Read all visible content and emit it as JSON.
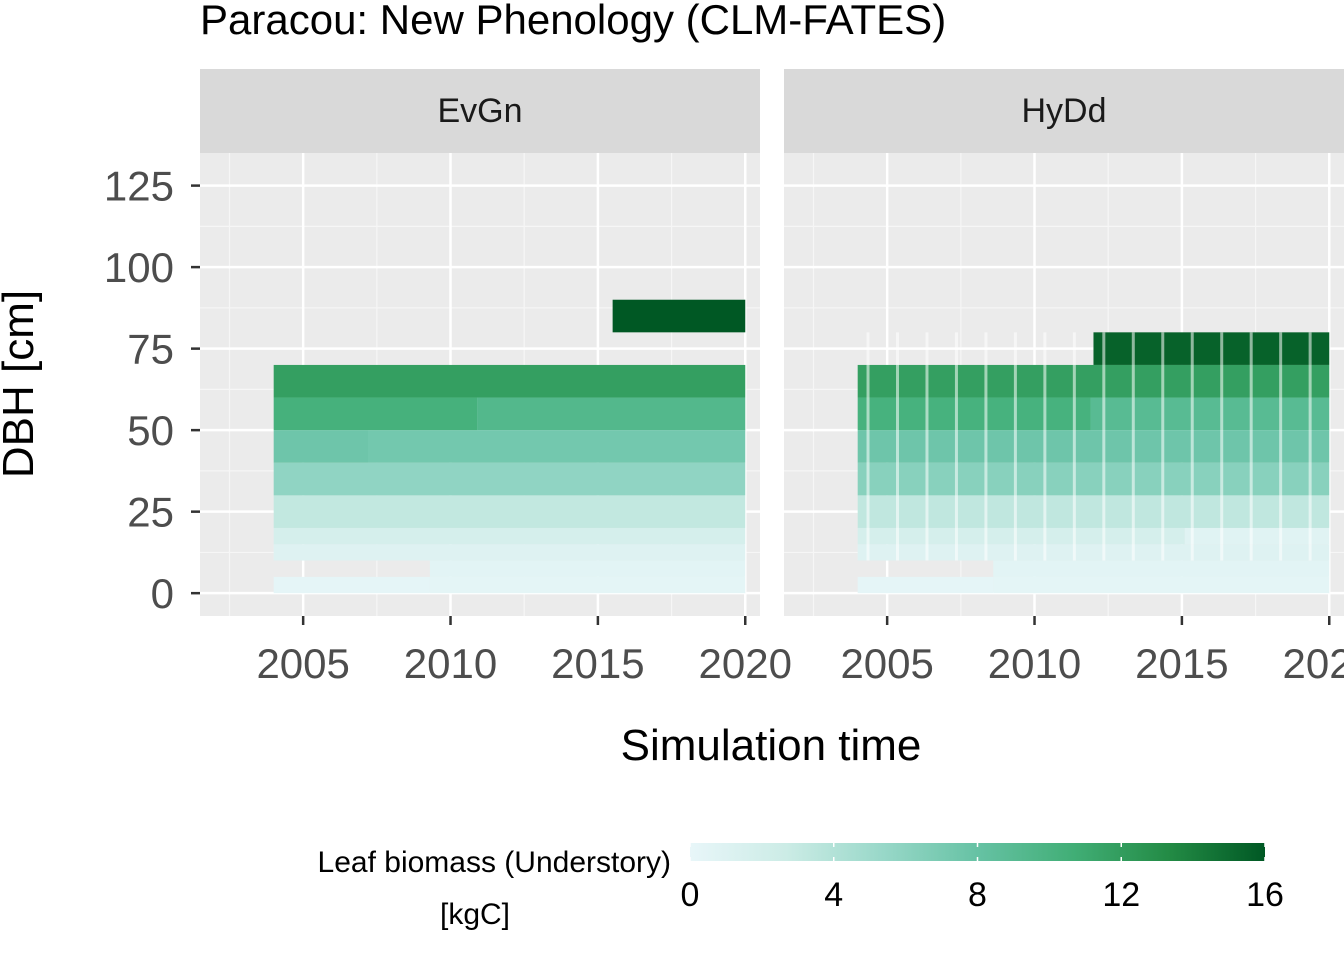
{
  "chart_data": {
    "type": "heatmap",
    "title": "Paracou: New Phenology (CLM-FATES)",
    "xlabel": "Simulation time",
    "ylabel": "DBH [cm]",
    "xlim": [
      2001.5,
      2020.5
    ],
    "ylim": [
      -7,
      135
    ],
    "x_ticks": [
      2005,
      2010,
      2015,
      2020
    ],
    "x_tick_labels": [
      "2005",
      "2010",
      "2015",
      "2020"
    ],
    "y_ticks": [
      0,
      25,
      50,
      75,
      100,
      125
    ],
    "y_tick_labels": [
      "0",
      "25",
      "50",
      "75",
      "100",
      "125"
    ],
    "grid": true,
    "colorbar": {
      "title_line1": "Leaf biomass (Understory)",
      "title_line2": "[kgC]",
      "range": [
        0,
        16
      ],
      "ticks": [
        0,
        4,
        8,
        12,
        16
      ],
      "tick_labels": [
        "0",
        "4",
        "8",
        "12",
        "16"
      ],
      "colors": [
        "#e8f6f9",
        "#ccece6",
        "#99d8c9",
        "#66c2a4",
        "#41ae76",
        "#238b45",
        "#005824"
      ],
      "position": "bottom"
    },
    "facets": [
      {
        "label": "EvGn",
        "cells": [
          {
            "x0": 2004,
            "x1": 2009.3,
            "y0": 0,
            "y1": 5,
            "value": 0.3
          },
          {
            "x0": 2009.3,
            "x1": 2020,
            "y0": 0,
            "y1": 5,
            "value": 0.4
          },
          {
            "x0": 2004,
            "x1": 2009.3,
            "y0": 5,
            "y1": 10,
            "value": null
          },
          {
            "x0": 2009.3,
            "x1": 2020,
            "y0": 5,
            "y1": 10,
            "value": 0.6
          },
          {
            "x0": 2004,
            "x1": 2020,
            "y0": 10,
            "y1": 15,
            "value": 1.0
          },
          {
            "x0": 2004,
            "x1": 2020,
            "y0": 15,
            "y1": 20,
            "value": 1.8
          },
          {
            "x0": 2004,
            "x1": 2020,
            "y0": 20,
            "y1": 30,
            "value": 3.2
          },
          {
            "x0": 2004,
            "x1": 2020,
            "y0": 30,
            "y1": 40,
            "value": 5.8
          },
          {
            "x0": 2004,
            "x1": 2007.2,
            "y0": 40,
            "y1": 50,
            "value": 7.6
          },
          {
            "x0": 2007.2,
            "x1": 2020,
            "y0": 40,
            "y1": 50,
            "value": 7.3
          },
          {
            "x0": 2004,
            "x1": 2010.9,
            "y0": 50,
            "y1": 60,
            "value": 10.3
          },
          {
            "x0": 2010.9,
            "x1": 2020,
            "y0": 50,
            "y1": 60,
            "value": 9.4
          },
          {
            "x0": 2004,
            "x1": 2020,
            "y0": 60,
            "y1": 70,
            "value": 11.8
          },
          {
            "x0": 2015.5,
            "x1": 2020,
            "y0": 80,
            "y1": 90,
            "value": 16.0
          }
        ]
      },
      {
        "label": "HyDd",
        "cells": [
          {
            "x0": 2004,
            "x1": 2008.6,
            "y0": 0,
            "y1": 5,
            "value": 0.3
          },
          {
            "x0": 2008.6,
            "x1": 2020,
            "y0": 0,
            "y1": 5,
            "value": 0.4
          },
          {
            "x0": 2004,
            "x1": 2008.6,
            "y0": 5,
            "y1": 10,
            "value": null
          },
          {
            "x0": 2008.6,
            "x1": 2020,
            "y0": 5,
            "y1": 10,
            "value": 0.6
          },
          {
            "x0": 2004,
            "x1": 2020,
            "y0": 10,
            "y1": 15,
            "value": 1.0
          },
          {
            "x0": 2004,
            "x1": 2015.1,
            "y0": 15,
            "y1": 20,
            "value": 1.8
          },
          {
            "x0": 2015.1,
            "x1": 2020,
            "y0": 15,
            "y1": 20,
            "value": 0.8
          },
          {
            "x0": 2004,
            "x1": 2020,
            "y0": 20,
            "y1": 30,
            "value": 3.3
          },
          {
            "x0": 2004,
            "x1": 2020,
            "y0": 30,
            "y1": 40,
            "value": 6.2
          },
          {
            "x0": 2004,
            "x1": 2020,
            "y0": 40,
            "y1": 50,
            "value": 7.6
          },
          {
            "x0": 2004,
            "x1": 2011.9,
            "y0": 50,
            "y1": 60,
            "value": 10.2
          },
          {
            "x0": 2011.9,
            "x1": 2020,
            "y0": 50,
            "y1": 60,
            "value": 9.0
          },
          {
            "x0": 2004,
            "x1": 2020,
            "y0": 60,
            "y1": 70,
            "value": 11.8
          },
          {
            "x0": 2012,
            "x1": 2020,
            "y0": 70,
            "y1": 80,
            "value": 15.5
          }
        ],
        "gap_years": [
          2004.3,
          2005.3,
          2006.3,
          2007.3,
          2008.3,
          2009.3,
          2010.3,
          2011.3,
          2012.3,
          2013.3,
          2014.3,
          2015.3,
          2016.3,
          2017.3,
          2018.3,
          2019.3
        ]
      }
    ]
  }
}
